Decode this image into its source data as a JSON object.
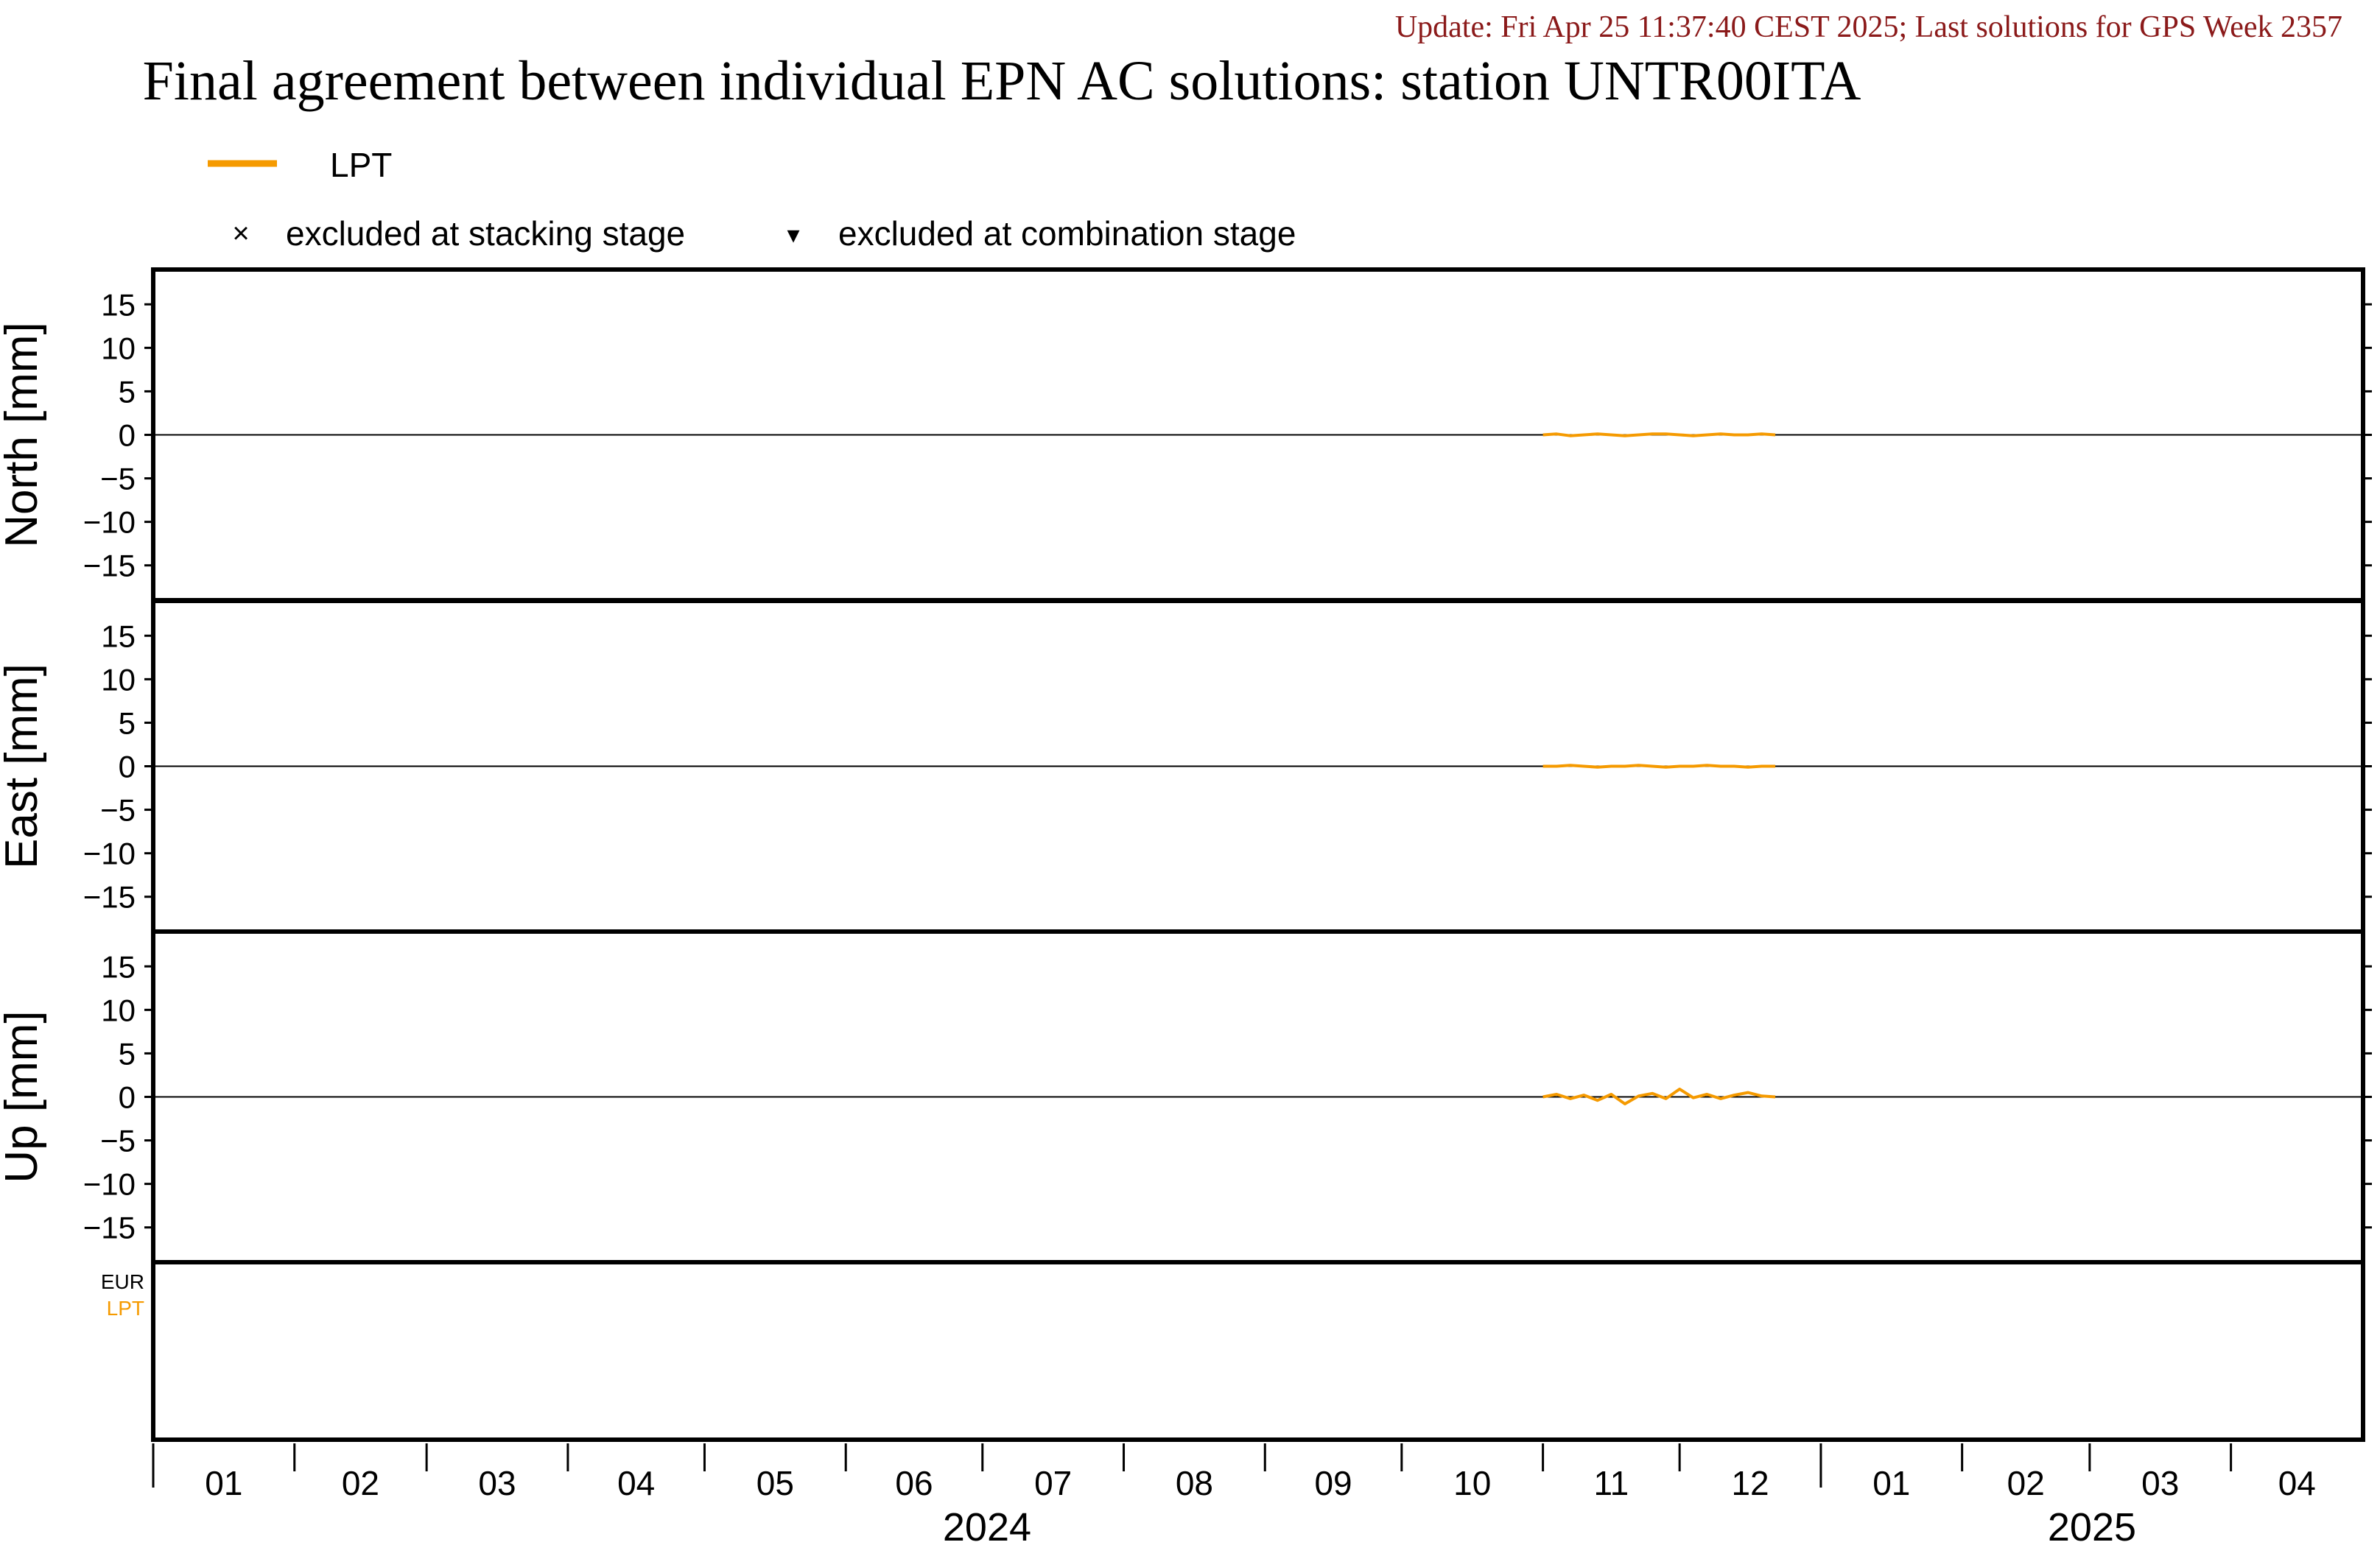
{
  "header": {
    "update_line": "Update: Fri Apr 25 11:37:40 CEST 2025; Last solutions for GPS Week 2357",
    "title": "Final agreement between individual EPN AC solutions: station UNTR00ITA"
  },
  "legend": {
    "series_label": "LPT",
    "excluded_stacking": "excluded at stacking stage",
    "excluded_combination": "excluded at combination stage",
    "stacking_symbol": "×",
    "combination_symbol": "▾"
  },
  "colors": {
    "update_text": "#8b1a1a",
    "lpt": "#f59a00",
    "axis": "#000000"
  },
  "chart_data": {
    "type": "line",
    "x_range": [
      "2024-01-01",
      "2025-04-30"
    ],
    "x_month_labels": {
      "2024": [
        "01",
        "02",
        "03",
        "04",
        "05",
        "06",
        "07",
        "08",
        "09",
        "10",
        "11",
        "12"
      ],
      "2025": [
        "01",
        "02",
        "03",
        "04"
      ]
    },
    "year_labels": [
      "2024",
      "2025"
    ],
    "panels": [
      {
        "ylabel": "North [mm]",
        "ylim": [
          -19,
          19
        ],
        "yticks": [
          "15",
          "10",
          "5",
          "0",
          "−5",
          "−10",
          "−15"
        ],
        "tick_values": [
          15,
          10,
          5,
          0,
          -5,
          -10,
          -15
        ],
        "series": [
          {
            "name": "LPT",
            "x": [
              "2024-11-01",
              "2024-11-04",
              "2024-11-07",
              "2024-11-10",
              "2024-11-13",
              "2024-11-16",
              "2024-11-19",
              "2024-11-22",
              "2024-11-25",
              "2024-11-28",
              "2024-12-01",
              "2024-12-04",
              "2024-12-07",
              "2024-12-10",
              "2024-12-13",
              "2024-12-16",
              "2024-12-19",
              "2024-12-22"
            ],
            "y": [
              0.0,
              0.1,
              -0.1,
              0.0,
              0.1,
              0.0,
              -0.1,
              0.0,
              0.1,
              0.1,
              0.0,
              -0.1,
              0.0,
              0.1,
              0.0,
              0.0,
              0.1,
              0.0
            ]
          }
        ]
      },
      {
        "ylabel": "East [mm]",
        "ylim": [
          -19,
          19
        ],
        "yticks": [
          "15",
          "10",
          "5",
          "0",
          "−5",
          "−10",
          "−15"
        ],
        "tick_values": [
          15,
          10,
          5,
          0,
          -5,
          -10,
          -15
        ],
        "series": [
          {
            "name": "LPT",
            "x": [
              "2024-11-01",
              "2024-11-04",
              "2024-11-07",
              "2024-11-10",
              "2024-11-13",
              "2024-11-16",
              "2024-11-19",
              "2024-11-22",
              "2024-11-25",
              "2024-11-28",
              "2024-12-01",
              "2024-12-04",
              "2024-12-07",
              "2024-12-10",
              "2024-12-13",
              "2024-12-16",
              "2024-12-19",
              "2024-12-22"
            ],
            "y": [
              0.0,
              0.0,
              0.1,
              0.0,
              -0.1,
              0.0,
              0.0,
              0.1,
              0.0,
              -0.1,
              0.0,
              0.0,
              0.1,
              0.0,
              0.0,
              -0.1,
              0.0,
              0.0
            ]
          }
        ]
      },
      {
        "ylabel": "Up [mm]",
        "ylim": [
          -19,
          19
        ],
        "yticks": [
          "15",
          "10",
          "5",
          "0",
          "−5",
          "−10",
          "−15"
        ],
        "tick_values": [
          15,
          10,
          5,
          0,
          -5,
          -10,
          -15
        ],
        "series": [
          {
            "name": "LPT",
            "x": [
              "2024-11-01",
              "2024-11-04",
              "2024-11-07",
              "2024-11-10",
              "2024-11-13",
              "2024-11-16",
              "2024-11-19",
              "2024-11-22",
              "2024-11-25",
              "2024-11-28",
              "2024-12-01",
              "2024-12-04",
              "2024-12-07",
              "2024-12-10",
              "2024-12-13",
              "2024-12-16",
              "2024-12-19",
              "2024-12-22"
            ],
            "y": [
              0.0,
              0.3,
              -0.2,
              0.2,
              -0.4,
              0.3,
              -0.8,
              0.1,
              0.4,
              -0.2,
              0.9,
              -0.1,
              0.3,
              -0.2,
              0.2,
              0.5,
              0.1,
              0.0
            ]
          }
        ]
      }
    ],
    "availability_panel": {
      "labels": [
        {
          "text": "EUR",
          "color": "#000000"
        },
        {
          "text": "LPT",
          "color": "#f59a00"
        }
      ]
    }
  }
}
